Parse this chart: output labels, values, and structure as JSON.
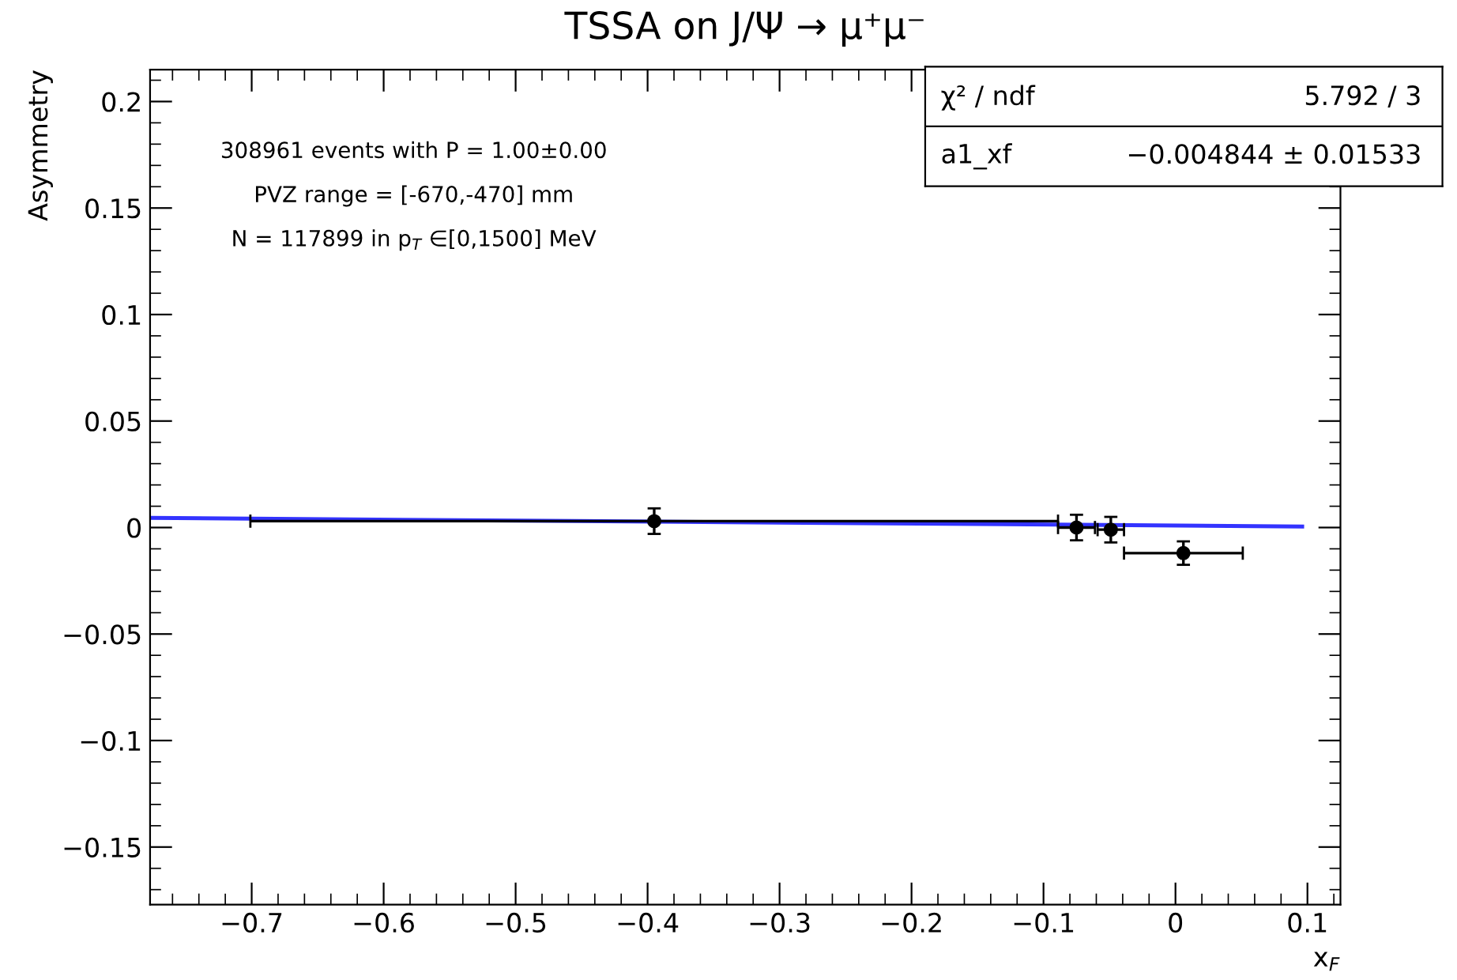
{
  "chart_data": {
    "type": "scatter",
    "title": "TSSA on J/Ψ → μ⁺μ⁻",
    "xlabel": "x$_{F}$",
    "ylabel": "Asymmetry",
    "annotations": [
      "308961 events with P = 1.00±0.00",
      "PVZ range = [-670,-470] mm",
      "N = 117899 in p$_{T}$ ∈[0,1500] MeV",
      "χ² / ndf",
      "5.792 / 3",
      "a1_xf",
      "−0.004844 ± 0.01533"
    ],
    "series": [
      {
        "color": "#000000",
        "marker": "circle",
        "x": [
          -0.395,
          -0.075,
          -0.049,
          0.006
        ],
        "values": [
          0.003,
          0.0,
          -0.001,
          -0.012
        ],
        "errors": [
          0.006,
          0.006,
          0.006,
          0.0055
        ],
        "xerrors": [
          0.306,
          0.014,
          0.01,
          0.045
        ]
      },
      {
        "type": "line",
        "color": "#3333ff",
        "marker": "none",
        "line_style": "solid",
        "x": [
          -0.777,
          0.096
        ],
        "values": [
          0.0045,
          0.0005
        ]
      }
    ],
    "xlim": [
      -0.777,
      0.125
    ],
    "ylim": [
      -0.177,
      0.215
    ],
    "xticks": [
      -0.7,
      -0.6,
      -0.5,
      -0.4,
      -0.3,
      -0.2,
      -0.1,
      0,
      0.1
    ],
    "yticks": [
      -0.15,
      -0.1,
      -0.05,
      0,
      0.05,
      0.1,
      0.15,
      0.2
    ],
    "grid": false,
    "legend": false
  }
}
